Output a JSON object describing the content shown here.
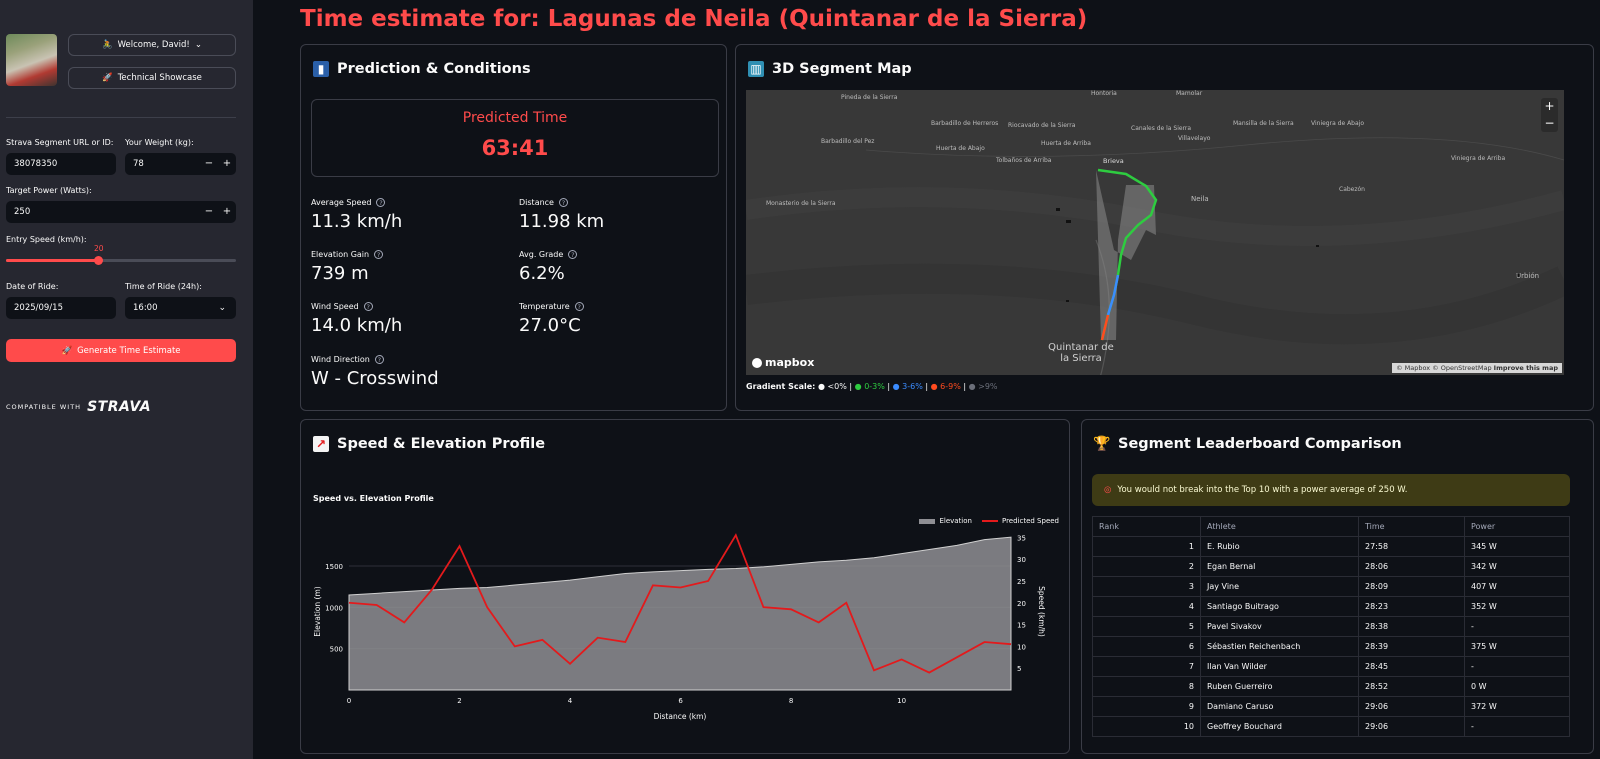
{
  "sidebar": {
    "welcome_label": "Welcome, David!",
    "showcase_label": "Technical Showcase",
    "segment_label": "Strava Segment URL or ID:",
    "segment_value": "38078350",
    "weight_label": "Your Weight (kg):",
    "weight_value": "78",
    "power_label": "Target Power (Watts):",
    "power_value": "250",
    "entry_speed_label": "Entry Speed (km/h):",
    "entry_speed_value": "20",
    "entry_speed_fraction": 0.4,
    "date_label": "Date of Ride:",
    "date_value": "2025/09/15",
    "time_label": "Time of Ride (24h):",
    "time_value": "16:00",
    "stepper_minus": "−",
    "stepper_plus": "+",
    "generate_label": "Generate Time Estimate",
    "compatible_text": "COMPATIBLE WITH",
    "strava_text": "STRAVA"
  },
  "page_title": "Time estimate for: Lagunas de Neila (Quintanar de la Sierra)",
  "prediction": {
    "title": "Prediction & Conditions",
    "predicted_label": "Predicted Time",
    "predicted_value": "63:41",
    "metrics": [
      {
        "label": "Average Speed",
        "value": "11.3 km/h"
      },
      {
        "label": "Distance",
        "value": "11.98 km"
      },
      {
        "label": "Elevation Gain",
        "value": "739 m"
      },
      {
        "label": "Avg. Grade",
        "value": "6.2%"
      },
      {
        "label": "Wind Speed",
        "value": "14.0 km/h"
      },
      {
        "label": "Temperature",
        "value": "27.0°C"
      },
      {
        "label": "Wind Direction",
        "value": "W - Crosswind"
      }
    ]
  },
  "map": {
    "title": "3D Segment Map",
    "labels": {
      "l1": "Pineda de la Sierra",
      "l2": "Barbadillo de Herreros",
      "l3": "Riocavado de la Sierra",
      "l4": "Barbadillo del Pez",
      "l5": "Huerta de Abajo",
      "l6": "Huerta de Arriba",
      "l7": "Tolbaños de Arriba",
      "l8": "Monasterio de la Sierra",
      "l9": "Neila",
      "l10": "Brieva",
      "l11": "Canales de la Sierra",
      "l12": "Villavelayo",
      "l13": "Mansilla de la Sierra",
      "l14": "Viniegra de Abajo",
      "l15": "Cabezón",
      "l16": "Viniegra de Arriba",
      "l17": "Quintanar de la Sierra",
      "l18": "Urbión",
      "l19": "Hontoria",
      "l20": "Mamolar"
    },
    "zoom_in": "+",
    "zoom_out": "−",
    "logo": "mapbox",
    "attribution": "© Mapbox © OpenStreetMap",
    "improve": "Improve this map",
    "gradient_title": "Gradient Scale:",
    "gradient_items": [
      {
        "label": "<0%",
        "color": "#fafafa"
      },
      {
        "label": "0-3%",
        "color": "#2ecc40"
      },
      {
        "label": "3-6%",
        "color": "#3b8cff"
      },
      {
        "label": "6-9%",
        "color": "#ff4b1f"
      },
      {
        "label": ">9%",
        "color": "#6b6f7a"
      }
    ]
  },
  "profile": {
    "title": "Speed & Elevation Profile",
    "colors": {
      "elevation": "#8e8e93",
      "speed": "#e31a1c"
    }
  },
  "chart_data": {
    "type": "area",
    "title": "Speed vs. Elevation Profile",
    "xlabel": "Distance (km)",
    "ylabel": "Elevation (m)",
    "y2label": "Speed (km/h)",
    "xlim": [
      0,
      11.98
    ],
    "ylim": [
      0,
      1900
    ],
    "y2lim": [
      0,
      36
    ],
    "x_ticks": [
      "0",
      "2",
      "4",
      "6",
      "8",
      "10"
    ],
    "y_ticks": [
      "500",
      "1000",
      "1500"
    ],
    "y2_ticks": [
      "5",
      "10",
      "15",
      "20",
      "25",
      "30",
      "35"
    ],
    "legend_placement": "top-right",
    "series": [
      {
        "name": "Elevation",
        "x": [
          0,
          0.5,
          1,
          1.5,
          2,
          2.5,
          3,
          3.5,
          4,
          4.5,
          5,
          5.5,
          6,
          6.5,
          7,
          7.5,
          8,
          8.5,
          9,
          9.5,
          10,
          10.5,
          11,
          11.5,
          11.98
        ],
        "y": [
          1150,
          1170,
          1190,
          1210,
          1230,
          1240,
          1270,
          1300,
          1330,
          1370,
          1410,
          1430,
          1445,
          1460,
          1470,
          1490,
          1520,
          1550,
          1570,
          1600,
          1650,
          1700,
          1750,
          1820,
          1850
        ]
      },
      {
        "name": "Predicted Speed",
        "x": [
          0,
          0.5,
          1,
          1.5,
          2,
          2.5,
          3,
          3.5,
          4,
          4.5,
          5,
          5.5,
          6,
          6.5,
          7,
          7.5,
          8,
          8.5,
          9,
          9.5,
          10,
          10.5,
          11,
          11.5,
          11.98
        ],
        "y": [
          20,
          19.5,
          15.5,
          23,
          33,
          19,
          10,
          11.5,
          6,
          12,
          11,
          24,
          23.5,
          25,
          35.5,
          19,
          18.5,
          15.5,
          20,
          4.5,
          7,
          4,
          7.5,
          11,
          10.5
        ]
      }
    ]
  },
  "leaderboard": {
    "title": "Segment Leaderboard Comparison",
    "warning": "You would not break into the Top 10 with a power average of 250 W.",
    "columns": [
      "Rank",
      "Athlete",
      "Time",
      "Power"
    ],
    "rows": [
      [
        "1",
        "E. Rubio",
        "27:58",
        "345  W"
      ],
      [
        "2",
        "Egan Bernal",
        "28:06",
        "342  W"
      ],
      [
        "3",
        "Jay Vine",
        "28:09",
        "407  W"
      ],
      [
        "4",
        "Santiago Buitrago",
        "28:23",
        "352  W"
      ],
      [
        "5",
        "Pavel Sivakov",
        "28:38",
        "-"
      ],
      [
        "6",
        "Sébastien Reichenbach",
        "28:39",
        "375  W"
      ],
      [
        "7",
        "Ilan Van Wilder",
        "28:45",
        "-"
      ],
      [
        "8",
        "Ruben Guerreiro",
        "28:52",
        "0  W"
      ],
      [
        "9",
        "Damiano Caruso",
        "29:06",
        "372  W"
      ],
      [
        "10",
        "Geoffrey Bouchard",
        "29:06",
        "-"
      ]
    ]
  }
}
